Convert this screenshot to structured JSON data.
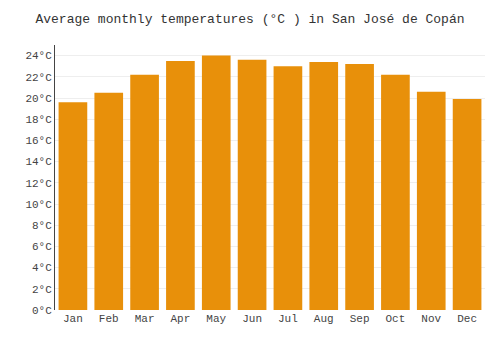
{
  "chart_data": {
    "type": "bar",
    "title": "Average monthly temperatures (°C ) in San José de Copán",
    "categories": [
      "Jan",
      "Feb",
      "Mar",
      "Apr",
      "May",
      "Jun",
      "Jul",
      "Aug",
      "Sep",
      "Oct",
      "Nov",
      "Dec"
    ],
    "values": [
      19.6,
      20.5,
      22.2,
      23.5,
      24.0,
      23.6,
      23.0,
      23.4,
      23.2,
      22.2,
      20.6,
      19.9
    ],
    "color": "#E8900A",
    "ylim": [
      0,
      25
    ],
    "yticks": [
      {
        "value": 0,
        "label": "0°C"
      },
      {
        "value": 2,
        "label": "2°C"
      },
      {
        "value": 4,
        "label": "4°C"
      },
      {
        "value": 6,
        "label": "6°C"
      },
      {
        "value": 8,
        "label": "8°C"
      },
      {
        "value": 10,
        "label": "10°C"
      },
      {
        "value": 12,
        "label": "12°C"
      },
      {
        "value": 14,
        "label": "14°C"
      },
      {
        "value": 16,
        "label": "16°C"
      },
      {
        "value": 18,
        "label": "18°C"
      },
      {
        "value": 20,
        "label": "20°C"
      },
      {
        "value": 22,
        "label": "22°C"
      },
      {
        "value": 24,
        "label": "24°C"
      }
    ],
    "grid": true
  }
}
